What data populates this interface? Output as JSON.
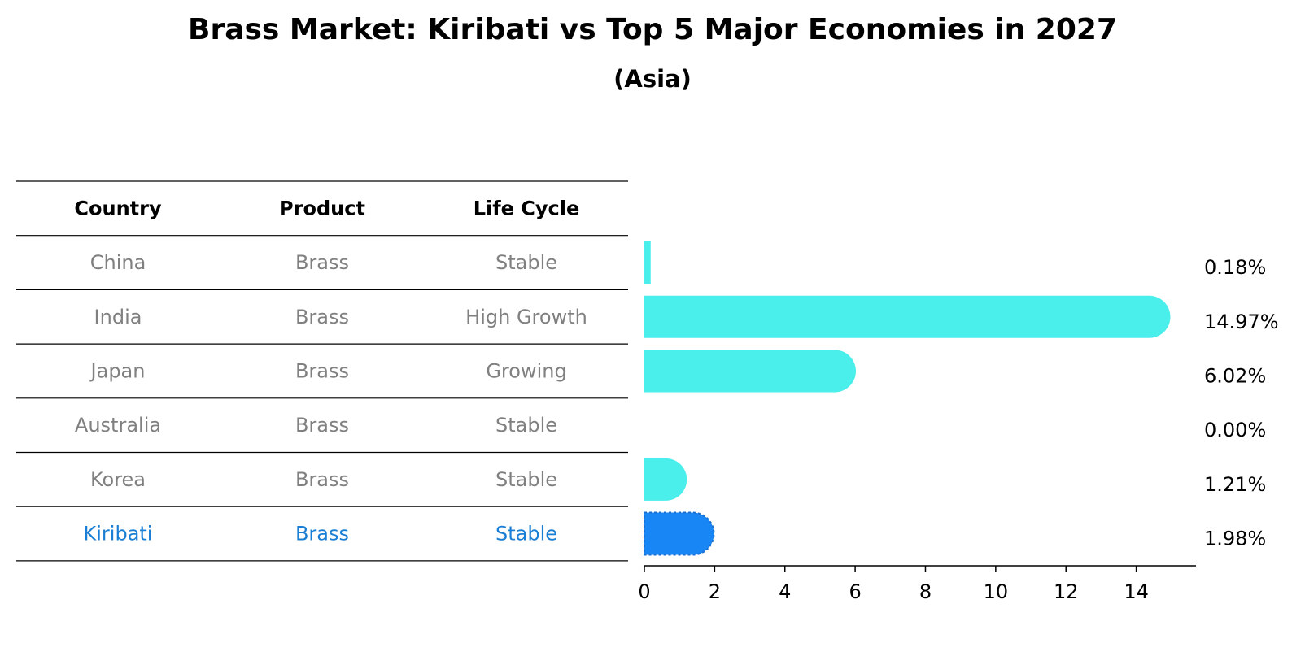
{
  "title": "Brass Market: Kiribati vs Top 5 Major Economies in 2027",
  "subtitle": "(Asia)",
  "table": {
    "columns": [
      "Country",
      "Product",
      "Life Cycle"
    ],
    "rows": [
      {
        "country": "China",
        "product": "Brass",
        "life_cycle": "Stable",
        "highlight": false
      },
      {
        "country": "India",
        "product": "Brass",
        "life_cycle": "High Growth",
        "highlight": false
      },
      {
        "country": "Japan",
        "product": "Brass",
        "life_cycle": "Growing",
        "highlight": false
      },
      {
        "country": "Australia",
        "product": "Brass",
        "life_cycle": "Stable",
        "highlight": false
      },
      {
        "country": "Korea",
        "product": "Brass",
        "life_cycle": "Stable",
        "highlight": false
      },
      {
        "country": "Kiribati",
        "product": "Brass",
        "life_cycle": "Stable",
        "highlight": true
      }
    ]
  },
  "colors": {
    "bar": "#4aeeea",
    "highlight_bar": "#1886f5",
    "highlight_text": "#1a7fd4",
    "muted_text": "#808080"
  },
  "chart_data": {
    "type": "bar",
    "orientation": "horizontal",
    "categories": [
      "China",
      "India",
      "Japan",
      "Australia",
      "Korea",
      "Kiribati"
    ],
    "values": [
      0.18,
      14.97,
      6.02,
      0.0,
      1.21,
      1.98
    ],
    "value_labels": [
      "0.18%",
      "14.97%",
      "6.02%",
      "0.00%",
      "1.21%",
      "1.98%"
    ],
    "xticks": [
      0,
      2,
      4,
      6,
      8,
      10,
      12,
      14
    ],
    "xlim": [
      0,
      15.7
    ],
    "highlight": "Kiribati"
  }
}
